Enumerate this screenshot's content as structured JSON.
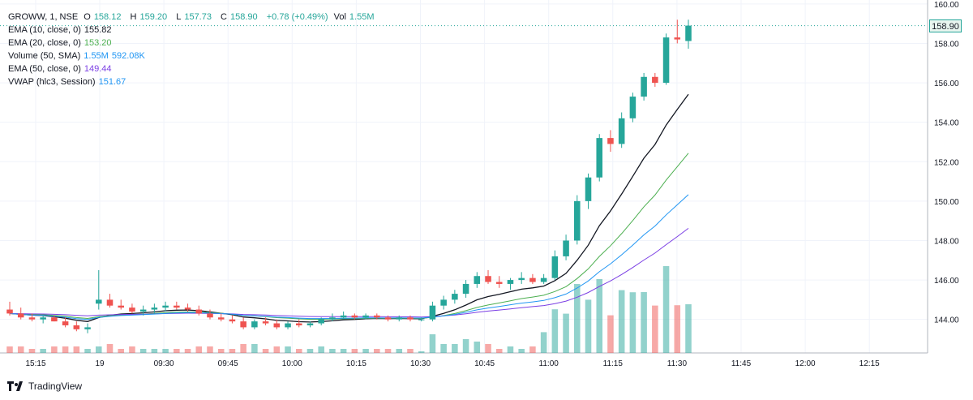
{
  "legend": {
    "symbol": "GROWW, 1, NSE",
    "o_label": "O",
    "o": "158.12",
    "h_label": "H",
    "h": "159.20",
    "l_label": "L",
    "l": "157.73",
    "c_label": "C",
    "c": "158.90",
    "change": "+0.78 (+0.49%)",
    "vol_label": "Vol",
    "vol": "1.55M",
    "indicators": [
      {
        "name": "EMA (10, close, 0)",
        "value": "155.82",
        "color": "#131722"
      },
      {
        "name": "EMA (20, close, 0)",
        "value": "153.20",
        "color": "#4caf50"
      },
      {
        "name": "Volume (50, SMA)",
        "value": "1.55M",
        "value2": "592.08K",
        "color": "#2196f3"
      },
      {
        "name": "EMA (50, close, 0)",
        "value": "149.44",
        "color": "#7b3fe4"
      },
      {
        "name": "VWAP (hlc3, Session)",
        "value": "151.67",
        "color": "#2196f3"
      }
    ]
  },
  "last_price": "158.90",
  "brand": "TradingView",
  "colors": {
    "up": "#26a69a",
    "down": "#ef5350",
    "ema10": "#131722",
    "ema20": "#4caf50",
    "ema50": "#7b3fe4",
    "vwap": "#2196f3"
  },
  "chart_data": {
    "type": "candlestick",
    "y_axis": {
      "ticks": [
        "160.00",
        "158.00",
        "156.00",
        "154.00",
        "152.00",
        "150.00",
        "148.00",
        "146.00",
        "144.00"
      ],
      "ylim": [
        142.3,
        160.2
      ]
    },
    "x_axis": {
      "ticks": [
        "15:15",
        "19",
        "09:30",
        "09:45",
        "10:00",
        "10:15",
        "10:30",
        "10:45",
        "11:00",
        "11:15",
        "11:30",
        "11:45",
        "12:00",
        "12:15"
      ]
    },
    "candles": [
      [
        144.5,
        144.9,
        144.2,
        144.3
      ],
      [
        144.3,
        144.6,
        144.0,
        144.1
      ],
      [
        144.1,
        144.3,
        143.9,
        144.0
      ],
      [
        144.0,
        144.2,
        143.8,
        144.1
      ],
      [
        144.1,
        144.2,
        143.9,
        143.9
      ],
      [
        143.9,
        144.1,
        143.6,
        143.7
      ],
      [
        143.7,
        143.9,
        143.4,
        143.5
      ],
      [
        143.5,
        143.8,
        143.3,
        143.6
      ],
      [
        144.8,
        146.5,
        144.5,
        145.0
      ],
      [
        145.0,
        145.3,
        144.6,
        144.7
      ],
      [
        144.7,
        145.0,
        144.5,
        144.6
      ],
      [
        144.6,
        144.8,
        144.3,
        144.4
      ],
      [
        144.4,
        144.7,
        144.2,
        144.5
      ],
      [
        144.5,
        144.8,
        144.3,
        144.6
      ],
      [
        144.6,
        144.9,
        144.4,
        144.7
      ],
      [
        144.7,
        144.9,
        144.5,
        144.6
      ],
      [
        144.6,
        144.8,
        144.4,
        144.5
      ],
      [
        144.5,
        144.7,
        144.2,
        144.3
      ],
      [
        144.3,
        144.5,
        144.0,
        144.1
      ],
      [
        144.1,
        144.3,
        143.9,
        144.0
      ],
      [
        144.0,
        144.2,
        143.8,
        143.9
      ],
      [
        143.9,
        144.1,
        143.5,
        143.6
      ],
      [
        143.6,
        144.0,
        143.5,
        143.9
      ],
      [
        143.9,
        144.1,
        143.7,
        143.8
      ],
      [
        143.8,
        144.0,
        143.5,
        143.6
      ],
      [
        143.6,
        143.9,
        143.5,
        143.8
      ],
      [
        143.8,
        144.0,
        143.6,
        143.7
      ],
      [
        143.7,
        143.9,
        143.6,
        143.8
      ],
      [
        143.8,
        144.1,
        143.7,
        144.0
      ],
      [
        144.0,
        144.3,
        143.9,
        144.1
      ],
      [
        144.1,
        144.4,
        144.0,
        144.2
      ],
      [
        144.2,
        144.3,
        144.0,
        144.1
      ],
      [
        144.1,
        144.3,
        144.0,
        144.2
      ],
      [
        144.2,
        144.3,
        144.0,
        144.1
      ],
      [
        144.1,
        144.2,
        143.9,
        144.0
      ],
      [
        144.0,
        144.2,
        143.9,
        144.1
      ],
      [
        144.1,
        144.2,
        143.9,
        144.0
      ],
      [
        144.0,
        144.1,
        143.9,
        144.0
      ],
      [
        144.0,
        144.9,
        143.9,
        144.7
      ],
      [
        144.7,
        145.2,
        144.5,
        145.0
      ],
      [
        145.0,
        145.5,
        144.8,
        145.3
      ],
      [
        145.3,
        146.0,
        145.1,
        145.8
      ],
      [
        145.8,
        146.4,
        145.6,
        146.2
      ],
      [
        146.2,
        146.5,
        145.8,
        145.9
      ],
      [
        145.9,
        146.2,
        145.6,
        145.8
      ],
      [
        145.8,
        146.1,
        145.5,
        146.0
      ],
      [
        146.0,
        146.4,
        145.8,
        146.1
      ],
      [
        146.1,
        146.3,
        145.8,
        145.9
      ],
      [
        145.9,
        146.3,
        145.8,
        146.1
      ],
      [
        146.1,
        147.5,
        146.0,
        147.2
      ],
      [
        147.2,
        148.3,
        147.0,
        148.0
      ],
      [
        148.0,
        150.3,
        147.8,
        150.0
      ],
      [
        150.0,
        151.4,
        149.6,
        151.2
      ],
      [
        151.2,
        153.4,
        151.0,
        153.2
      ],
      [
        153.2,
        153.6,
        152.5,
        152.9
      ],
      [
        152.9,
        154.5,
        152.7,
        154.2
      ],
      [
        154.2,
        155.5,
        154.0,
        155.3
      ],
      [
        155.3,
        156.5,
        155.1,
        156.3
      ],
      [
        156.3,
        156.5,
        155.8,
        156.0
      ],
      [
        156.0,
        158.5,
        155.9,
        158.3
      ],
      [
        158.3,
        159.2,
        158.0,
        158.2
      ],
      [
        158.12,
        159.2,
        157.73,
        158.9
      ]
    ]
  }
}
